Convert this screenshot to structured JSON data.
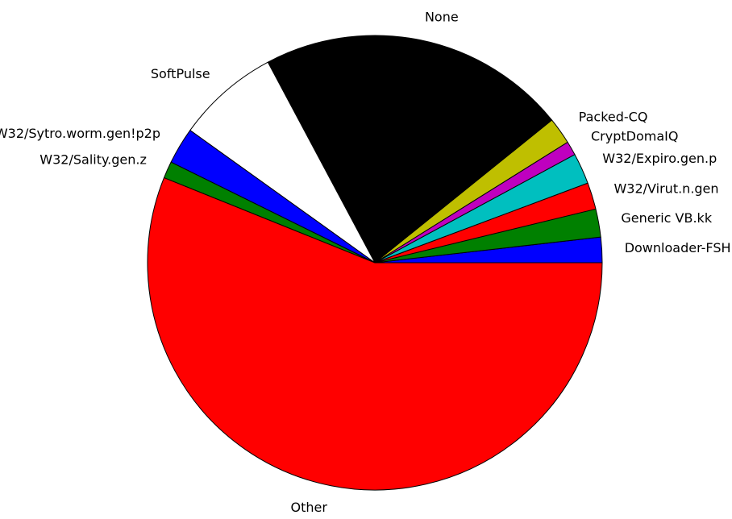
{
  "chart_data": {
    "type": "pie",
    "start_angle_deg": 0,
    "direction": "counterclockwise",
    "slices": [
      {
        "label": "Downloader-FSH",
        "value": 1.8,
        "color": "#0000ff"
      },
      {
        "label": "Generic VB.kk",
        "value": 2.0,
        "color": "#008000"
      },
      {
        "label": "W32/Virut.n.gen",
        "value": 1.9,
        "color": "#ff0000"
      },
      {
        "label": "W32/Expiro.gen.p",
        "value": 2.2,
        "color": "#00bfbf"
      },
      {
        "label": "CryptDomaIQ",
        "value": 1.0,
        "color": "#bf00bf"
      },
      {
        "label": "Packed-CQ",
        "value": 1.9,
        "color": "#bfbf00"
      },
      {
        "label": "None",
        "value": 22.0,
        "color": "#000000"
      },
      {
        "label": "SoftPulse",
        "value": 7.3,
        "color": "#ffffff"
      },
      {
        "label": "W32/Sytro.worm.gen!p2p",
        "value": 2.6,
        "color": "#0000ff"
      },
      {
        "label": "W32/Sality.gen.z",
        "value": 1.2,
        "color": "#008000"
      },
      {
        "label": "Other",
        "value": 56.1,
        "color": "#ff0000"
      }
    ]
  }
}
